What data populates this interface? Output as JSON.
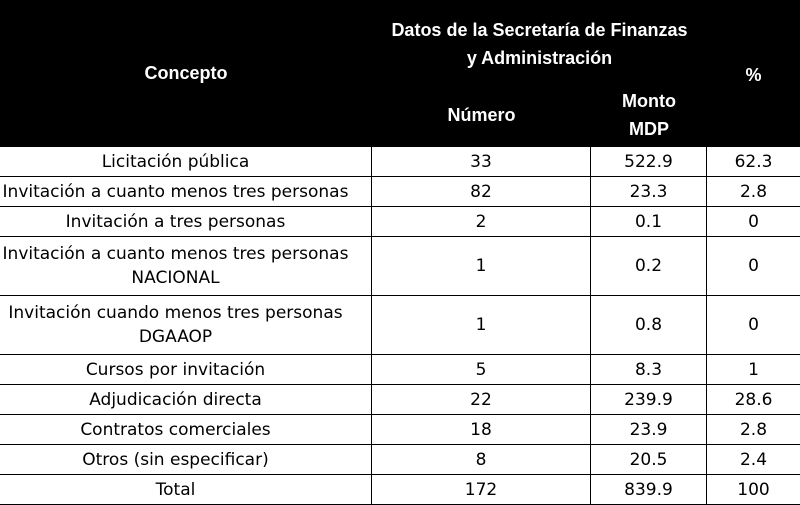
{
  "header": {
    "concepto": "Concepto",
    "group_line1": "Datos de la Secretaría de Finanzas",
    "group_line2": "y Administración",
    "numero": "Número",
    "monto_line1": "Monto",
    "monto_line2": "MDP",
    "pct": "%"
  },
  "rows": [
    {
      "concepto": "Licitación pública",
      "numero": "33",
      "monto": "522.9",
      "pct": "62.3"
    },
    {
      "concepto": "Invitación a cuanto menos tres personas",
      "numero": "82",
      "monto": "23.3",
      "pct": "2.8"
    },
    {
      "concepto": "Invitación a tres personas",
      "numero": "2",
      "monto": "0.1",
      "pct": "0"
    },
    {
      "concepto_line1": "Invitación a cuanto menos tres personas",
      "concepto_line2": "NACIONAL",
      "numero": "1",
      "monto": "0.2",
      "pct": "0"
    },
    {
      "concepto_line1": "Invitación cuando menos tres personas",
      "concepto_line2": "DGAAOP",
      "numero": "1",
      "monto": "0.8",
      "pct": "0"
    },
    {
      "concepto": "Cursos por invitación",
      "numero": "5",
      "monto": "8.3",
      "pct": "1"
    },
    {
      "concepto": "Adjudicación directa",
      "numero": "22",
      "monto": "239.9",
      "pct": "28.6"
    },
    {
      "concepto": "Contratos comerciales",
      "numero": "18",
      "monto": "23.9",
      "pct": "2.8"
    },
    {
      "concepto": "Otros (sin especificar)",
      "numero": "8",
      "monto": "20.5",
      "pct": "2.4"
    },
    {
      "concepto": "Total",
      "numero": "172",
      "monto": "839.9",
      "pct": "100"
    }
  ]
}
